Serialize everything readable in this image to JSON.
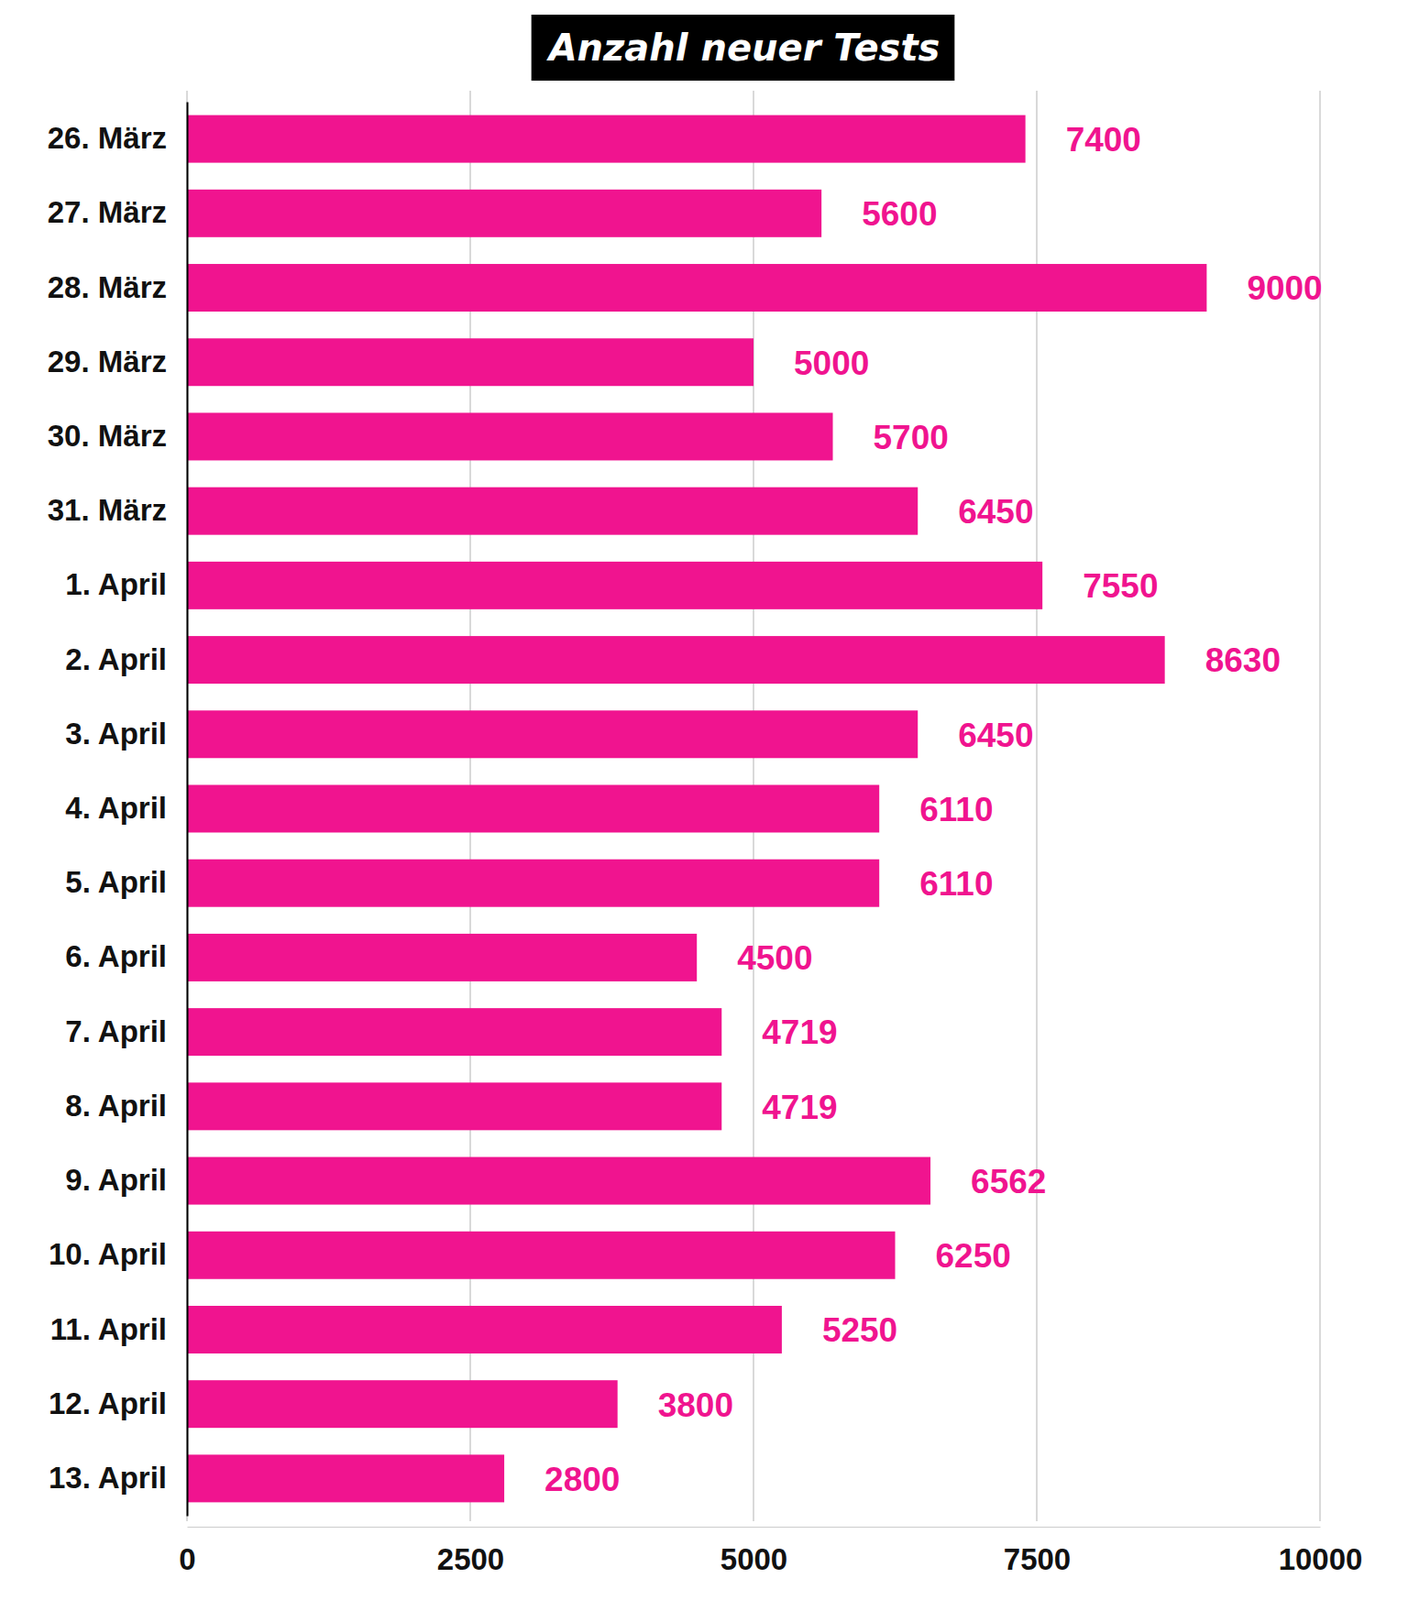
{
  "chart_data": {
    "type": "bar",
    "orientation": "horizontal",
    "title": "Anzahl neuer Tests",
    "categories": [
      "26. März",
      "27. März",
      "28. März",
      "29. März",
      "30. März",
      "31. März",
      "1. April",
      "2. April",
      "3. April",
      "4. April",
      "5. April",
      "6. April",
      "7. April",
      "8. April",
      "9. April",
      "10. April",
      "11. April",
      "12. April",
      "13. April"
    ],
    "values": [
      7400,
      5600,
      9000,
      5000,
      5700,
      6450,
      7550,
      8630,
      6450,
      6110,
      6110,
      4500,
      4719,
      4719,
      6562,
      6250,
      5250,
      3800,
      2800
    ],
    "color": "#f0148f",
    "xlim": [
      0,
      10000
    ],
    "xticks": [
      0,
      2500,
      5000,
      7500,
      10000
    ],
    "grid": true,
    "data_labels": true
  }
}
